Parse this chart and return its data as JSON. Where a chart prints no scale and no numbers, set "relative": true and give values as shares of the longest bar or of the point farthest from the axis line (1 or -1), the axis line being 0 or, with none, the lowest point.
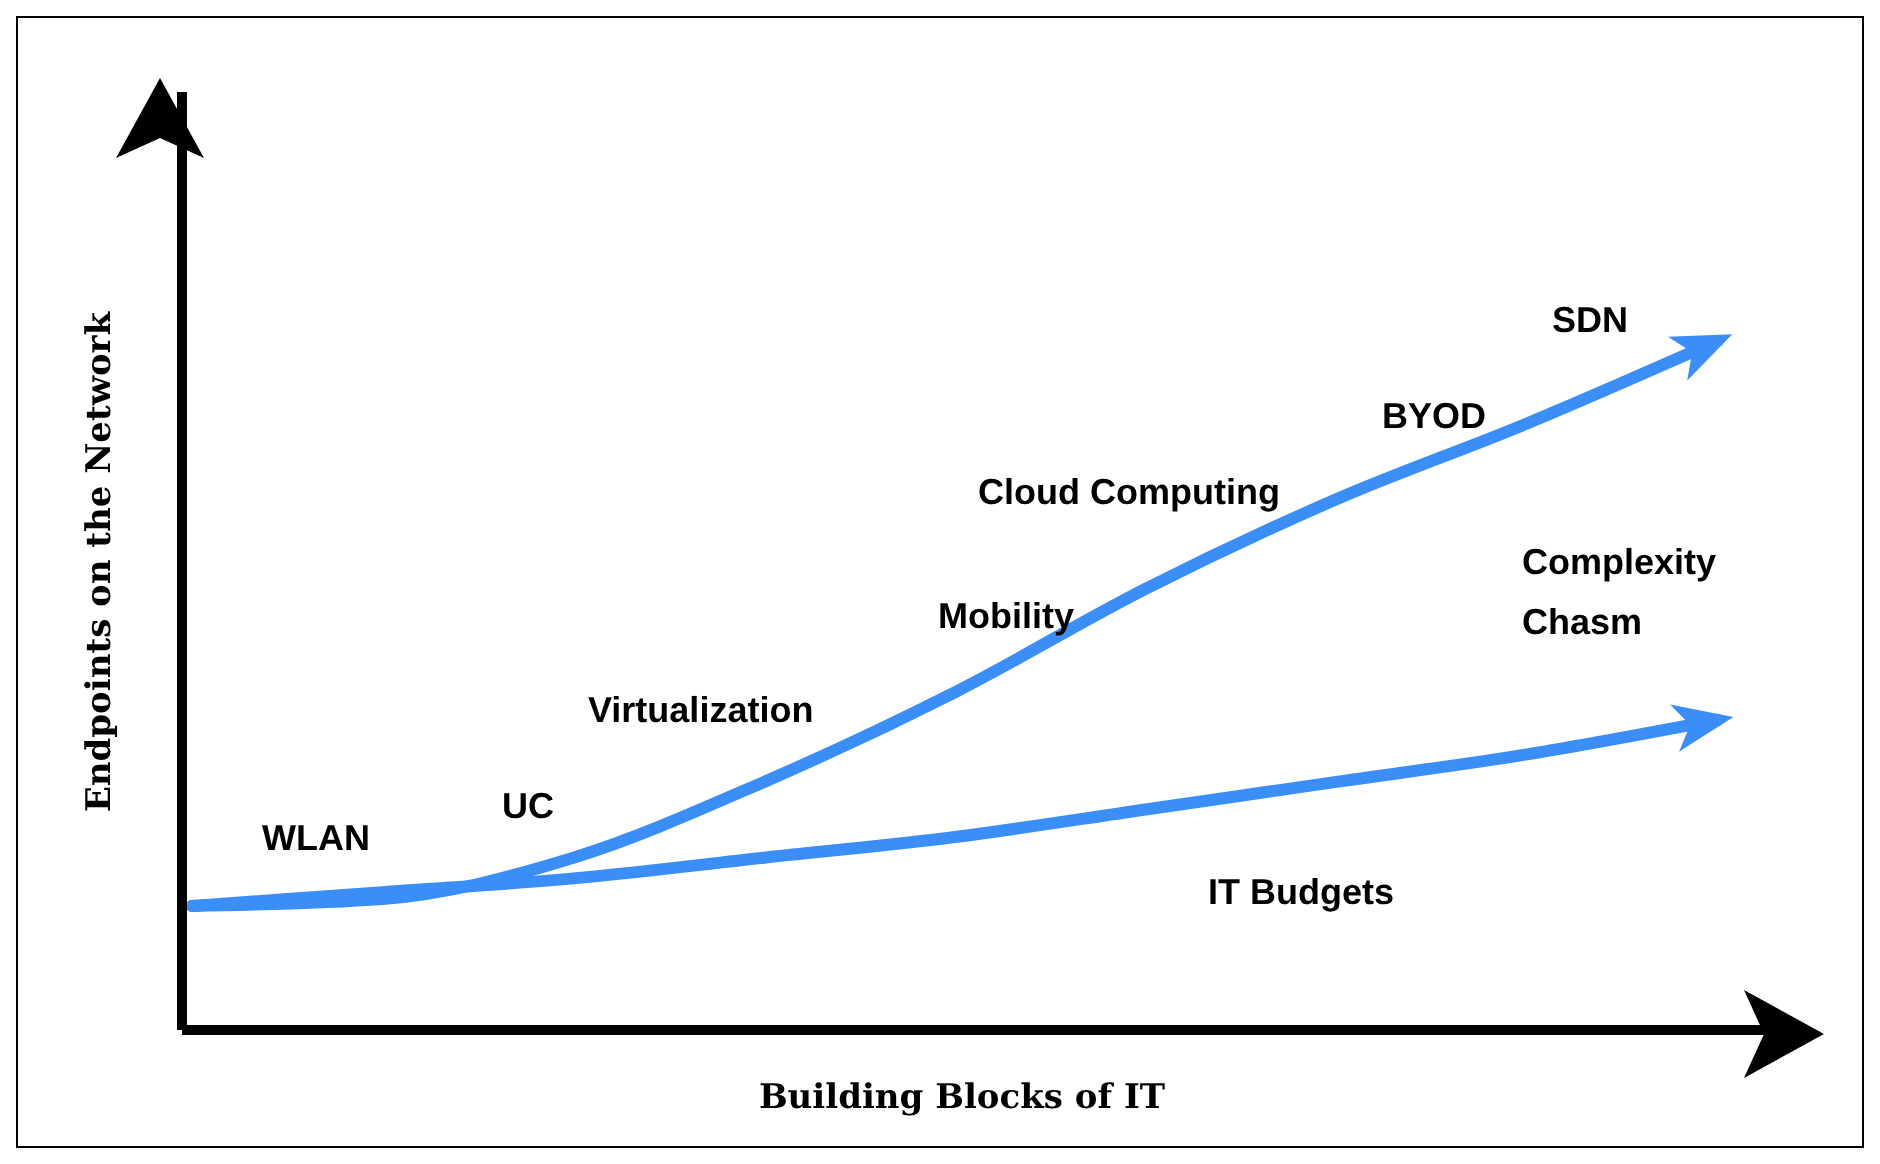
{
  "chart_data": {
    "type": "line",
    "relative": true,
    "xlabel": "Building Blocks of IT",
    "ylabel": "Endpoints on the Network",
    "categories": [
      null,
      null,
      null,
      null,
      null,
      null,
      null,
      null,
      null
    ],
    "series": [
      {
        "color": "#3a8ef6",
        "values": [
          0.18,
          0.19,
          0.25,
          0.36,
          0.49,
          0.64,
          0.77,
          0.88,
          1
        ]
      },
      {
        "color": "#3a8ef6",
        "values": [
          0.18,
          0.2,
          0.22,
          0.25,
          0.28,
          0.32,
          0.36,
          0.4,
          0.45
        ]
      }
    ],
    "annotations": [
      "WLAN",
      "UC",
      "Virtualization",
      "Mobility",
      "Cloud Computing",
      "BYOD",
      "SDN",
      "Complexity Chasm",
      "IT Budgets"
    ],
    "marker": "none",
    "line_style": "solid"
  }
}
